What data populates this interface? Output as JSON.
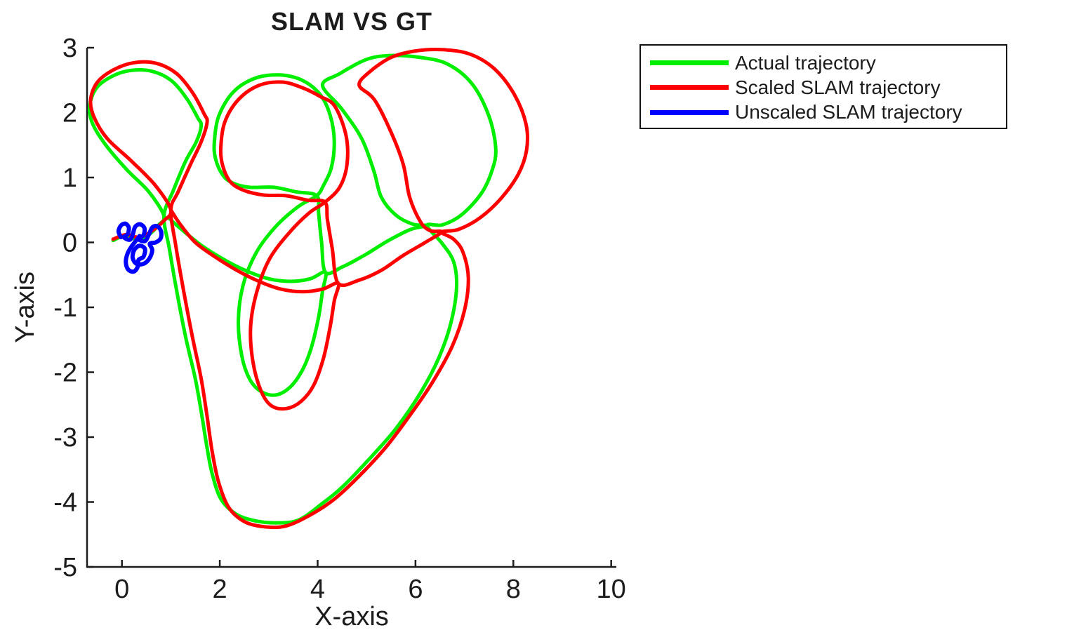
{
  "chart_data": {
    "type": "line",
    "title": "SLAM VS GT",
    "xlabel": "X-axis",
    "ylabel": "Y-axis",
    "xlim": [
      -0.713,
      10.105
    ],
    "ylim": [
      -5,
      3
    ],
    "xticks": [
      0,
      2,
      4,
      6,
      8,
      10
    ],
    "yticks": [
      3,
      2,
      1,
      0,
      -1,
      -2,
      -3,
      -4,
      -5
    ],
    "grid": false,
    "axis_color": "#1c1c1c",
    "background": "#ffffff",
    "legend": {
      "position": "outside-top-right",
      "items": [
        {
          "label": "Actual trajectory",
          "color": "#00ee00"
        },
        {
          "label": "Scaled SLAM trajectory",
          "color": "#ff0000"
        },
        {
          "label": "Unscaled SLAM trajectory",
          "color": "#0000ff"
        }
      ]
    },
    "series": [
      {
        "name": "Actual trajectory",
        "color": "#00ee00",
        "width": 5,
        "points": [
          [
            -0.18,
            0.03
          ],
          [
            0.05,
            0.1
          ],
          [
            0.3,
            0.05
          ],
          [
            0.55,
            0.12
          ],
          [
            0.75,
            0.27
          ],
          [
            0.86,
            0.41
          ],
          [
            0.55,
            0.78
          ],
          [
            0.1,
            1.12
          ],
          [
            -0.33,
            1.5
          ],
          [
            -0.6,
            1.83
          ],
          [
            -0.66,
            2.1
          ],
          [
            -0.52,
            2.38
          ],
          [
            -0.2,
            2.56
          ],
          [
            0.18,
            2.65
          ],
          [
            0.6,
            2.64
          ],
          [
            1.0,
            2.5
          ],
          [
            1.32,
            2.22
          ],
          [
            1.55,
            1.92
          ],
          [
            1.62,
            1.8
          ],
          [
            1.52,
            1.55
          ],
          [
            1.3,
            1.25
          ],
          [
            1.05,
            0.8
          ],
          [
            0.86,
            0.41
          ],
          [
            0.97,
            -0.1
          ],
          [
            1.12,
            -0.75
          ],
          [
            1.3,
            -1.45
          ],
          [
            1.5,
            -2.1
          ],
          [
            1.63,
            -2.65
          ],
          [
            1.73,
            -3.12
          ],
          [
            1.84,
            -3.55
          ],
          [
            2.02,
            -3.95
          ],
          [
            2.32,
            -4.18
          ],
          [
            2.67,
            -4.28
          ],
          [
            3.1,
            -4.32
          ],
          [
            3.6,
            -4.28
          ],
          [
            4.1,
            -4.02
          ],
          [
            4.53,
            -3.75
          ],
          [
            5.1,
            -3.3
          ],
          [
            5.61,
            -2.86
          ],
          [
            6.1,
            -2.32
          ],
          [
            6.47,
            -1.79
          ],
          [
            6.72,
            -1.25
          ],
          [
            6.84,
            -0.7
          ],
          [
            6.78,
            -0.3
          ],
          [
            6.55,
            -0.02
          ],
          [
            6.24,
            0.26
          ],
          [
            6.55,
            0.27
          ],
          [
            6.95,
            0.43
          ],
          [
            7.35,
            0.76
          ],
          [
            7.57,
            1.12
          ],
          [
            7.64,
            1.45
          ],
          [
            7.5,
            1.95
          ],
          [
            7.15,
            2.45
          ],
          [
            6.65,
            2.75
          ],
          [
            6.1,
            2.85
          ],
          [
            5.5,
            2.88
          ],
          [
            5.0,
            2.82
          ],
          [
            4.45,
            2.6
          ],
          [
            4.1,
            2.42
          ],
          [
            4.5,
            2.05
          ],
          [
            4.9,
            1.6
          ],
          [
            5.15,
            1.1
          ],
          [
            5.3,
            0.7
          ],
          [
            5.6,
            0.42
          ],
          [
            5.95,
            0.28
          ],
          [
            6.24,
            0.26
          ],
          [
            5.9,
            0.2
          ],
          [
            5.45,
            0.03
          ],
          [
            4.95,
            -0.2
          ],
          [
            4.5,
            -0.38
          ],
          [
            4.16,
            -0.46
          ],
          [
            4.08,
            0.0
          ],
          [
            4.02,
            0.45
          ],
          [
            3.98,
            0.72
          ],
          [
            3.55,
            0.78
          ],
          [
            3.1,
            0.85
          ],
          [
            2.6,
            0.85
          ],
          [
            2.25,
            0.92
          ],
          [
            2.05,
            1.05
          ],
          [
            1.91,
            1.3
          ],
          [
            1.89,
            1.55
          ],
          [
            1.98,
            1.95
          ],
          [
            2.28,
            2.32
          ],
          [
            2.72,
            2.53
          ],
          [
            3.22,
            2.58
          ],
          [
            3.68,
            2.5
          ],
          [
            4.05,
            2.28
          ],
          [
            4.26,
            1.95
          ],
          [
            4.34,
            1.55
          ],
          [
            4.28,
            1.15
          ],
          [
            4.12,
            0.88
          ],
          [
            3.98,
            0.72
          ],
          [
            3.6,
            0.55
          ],
          [
            3.15,
            0.25
          ],
          [
            2.75,
            -0.15
          ],
          [
            2.48,
            -0.65
          ],
          [
            2.38,
            -1.2
          ],
          [
            2.45,
            -1.75
          ],
          [
            2.62,
            -2.12
          ],
          [
            2.85,
            -2.3
          ],
          [
            3.15,
            -2.35
          ],
          [
            3.45,
            -2.22
          ],
          [
            3.7,
            -1.95
          ],
          [
            3.88,
            -1.6
          ],
          [
            4.02,
            -1.15
          ],
          [
            4.1,
            -0.75
          ],
          [
            4.16,
            -0.46
          ],
          [
            3.85,
            -0.56
          ],
          [
            3.45,
            -0.6
          ],
          [
            3.0,
            -0.56
          ],
          [
            2.55,
            -0.44
          ],
          [
            2.1,
            -0.27
          ],
          [
            1.65,
            -0.06
          ],
          [
            1.25,
            0.18
          ],
          [
            0.95,
            0.38
          ]
        ]
      },
      {
        "name": "Scaled SLAM trajectory",
        "color": "#ff0000",
        "width": 5,
        "points": [
          [
            -0.18,
            0.05
          ],
          [
            0.08,
            0.12
          ],
          [
            0.35,
            0.08
          ],
          [
            0.62,
            0.18
          ],
          [
            0.85,
            0.33
          ],
          [
            1.0,
            0.5
          ],
          [
            0.68,
            0.88
          ],
          [
            0.2,
            1.25
          ],
          [
            -0.3,
            1.6
          ],
          [
            -0.57,
            1.93
          ],
          [
            -0.64,
            2.2
          ],
          [
            -0.5,
            2.47
          ],
          [
            -0.17,
            2.66
          ],
          [
            0.25,
            2.77
          ],
          [
            0.7,
            2.76
          ],
          [
            1.12,
            2.6
          ],
          [
            1.45,
            2.3
          ],
          [
            1.68,
            1.98
          ],
          [
            1.74,
            1.85
          ],
          [
            1.62,
            1.55
          ],
          [
            1.4,
            1.2
          ],
          [
            1.15,
            0.78
          ],
          [
            1.0,
            0.5
          ],
          [
            1.1,
            -0.05
          ],
          [
            1.25,
            -0.7
          ],
          [
            1.43,
            -1.42
          ],
          [
            1.62,
            -2.1
          ],
          [
            1.74,
            -2.68
          ],
          [
            1.84,
            -3.2
          ],
          [
            1.97,
            -3.68
          ],
          [
            2.18,
            -4.08
          ],
          [
            2.5,
            -4.3
          ],
          [
            2.9,
            -4.38
          ],
          [
            3.35,
            -4.37
          ],
          [
            3.85,
            -4.2
          ],
          [
            4.35,
            -3.95
          ],
          [
            4.85,
            -3.6
          ],
          [
            5.4,
            -3.15
          ],
          [
            5.9,
            -2.65
          ],
          [
            6.35,
            -2.15
          ],
          [
            6.75,
            -1.6
          ],
          [
            7.0,
            -1.05
          ],
          [
            7.08,
            -0.55
          ],
          [
            6.97,
            -0.15
          ],
          [
            6.78,
            0.05
          ],
          [
            6.53,
            0.16
          ],
          [
            6.88,
            0.2
          ],
          [
            7.32,
            0.38
          ],
          [
            7.75,
            0.68
          ],
          [
            8.1,
            1.05
          ],
          [
            8.27,
            1.42
          ],
          [
            8.26,
            1.82
          ],
          [
            8.02,
            2.28
          ],
          [
            7.62,
            2.67
          ],
          [
            7.12,
            2.9
          ],
          [
            6.55,
            2.97
          ],
          [
            6.0,
            2.95
          ],
          [
            5.5,
            2.85
          ],
          [
            5.05,
            2.62
          ],
          [
            4.85,
            2.42
          ],
          [
            5.16,
            2.2
          ],
          [
            5.5,
            1.7
          ],
          [
            5.75,
            1.2
          ],
          [
            5.88,
            0.7
          ],
          [
            6.1,
            0.32
          ],
          [
            6.3,
            0.18
          ],
          [
            6.53,
            0.16
          ],
          [
            6.2,
            0.0
          ],
          [
            5.75,
            -0.2
          ],
          [
            5.3,
            -0.43
          ],
          [
            4.85,
            -0.58
          ],
          [
            4.42,
            -0.63
          ],
          [
            4.3,
            -0.1
          ],
          [
            4.2,
            0.35
          ],
          [
            4.15,
            0.62
          ],
          [
            3.8,
            0.65
          ],
          [
            3.35,
            0.72
          ],
          [
            2.9,
            0.73
          ],
          [
            2.5,
            0.8
          ],
          [
            2.22,
            0.93
          ],
          [
            2.06,
            1.18
          ],
          [
            2.02,
            1.45
          ],
          [
            2.1,
            1.85
          ],
          [
            2.38,
            2.2
          ],
          [
            2.8,
            2.42
          ],
          [
            3.28,
            2.47
          ],
          [
            3.7,
            2.38
          ],
          [
            4.05,
            2.25
          ],
          [
            4.35,
            2.1
          ],
          [
            4.58,
            1.65
          ],
          [
            4.6,
            1.2
          ],
          [
            4.45,
            0.85
          ],
          [
            4.15,
            0.62
          ],
          [
            3.82,
            0.45
          ],
          [
            3.42,
            0.15
          ],
          [
            3.02,
            -0.25
          ],
          [
            2.76,
            -0.75
          ],
          [
            2.63,
            -1.3
          ],
          [
            2.68,
            -1.85
          ],
          [
            2.85,
            -2.3
          ],
          [
            3.06,
            -2.52
          ],
          [
            3.36,
            -2.56
          ],
          [
            3.66,
            -2.45
          ],
          [
            3.92,
            -2.2
          ],
          [
            4.12,
            -1.78
          ],
          [
            4.26,
            -1.28
          ],
          [
            4.34,
            -0.9
          ],
          [
            4.42,
            -0.63
          ],
          [
            4.1,
            -0.72
          ],
          [
            3.7,
            -0.76
          ],
          [
            3.25,
            -0.72
          ],
          [
            2.8,
            -0.6
          ],
          [
            2.35,
            -0.43
          ],
          [
            1.9,
            -0.22
          ],
          [
            1.5,
            0.0
          ],
          [
            1.2,
            0.27
          ],
          [
            1.0,
            0.5
          ]
        ]
      },
      {
        "name": "Unscaled SLAM trajectory",
        "color": "#0000ff",
        "width": 6,
        "points": [
          [
            -0.02,
            0.08
          ],
          [
            -0.07,
            0.17
          ],
          [
            -0.02,
            0.26
          ],
          [
            0.07,
            0.29
          ],
          [
            0.14,
            0.23
          ],
          [
            0.12,
            0.13
          ],
          [
            0.04,
            0.08
          ],
          [
            0.16,
            0.04
          ],
          [
            0.22,
            0.12
          ],
          [
            0.27,
            0.24
          ],
          [
            0.37,
            0.28
          ],
          [
            0.46,
            0.22
          ],
          [
            0.44,
            0.11
          ],
          [
            0.34,
            0.05
          ],
          [
            0.47,
            0.02
          ],
          [
            0.55,
            0.12
          ],
          [
            0.62,
            0.23
          ],
          [
            0.72,
            0.25
          ],
          [
            0.8,
            0.17
          ],
          [
            0.79,
            0.06
          ],
          [
            0.69,
            0.0
          ],
          [
            0.57,
            -0.02
          ],
          [
            0.62,
            -0.12
          ],
          [
            0.56,
            -0.25
          ],
          [
            0.44,
            -0.33
          ],
          [
            0.3,
            -0.33
          ],
          [
            0.22,
            -0.24
          ],
          [
            0.25,
            -0.12
          ],
          [
            0.36,
            -0.05
          ],
          [
            0.47,
            -0.1
          ],
          [
            0.44,
            -0.22
          ],
          [
            0.34,
            -0.27
          ],
          [
            0.32,
            -0.38
          ],
          [
            0.24,
            -0.45
          ],
          [
            0.13,
            -0.42
          ],
          [
            0.08,
            -0.31
          ],
          [
            0.11,
            -0.18
          ],
          [
            0.19,
            -0.07
          ],
          [
            0.28,
            0.02
          ],
          [
            0.36,
            0.1
          ]
        ]
      }
    ]
  }
}
